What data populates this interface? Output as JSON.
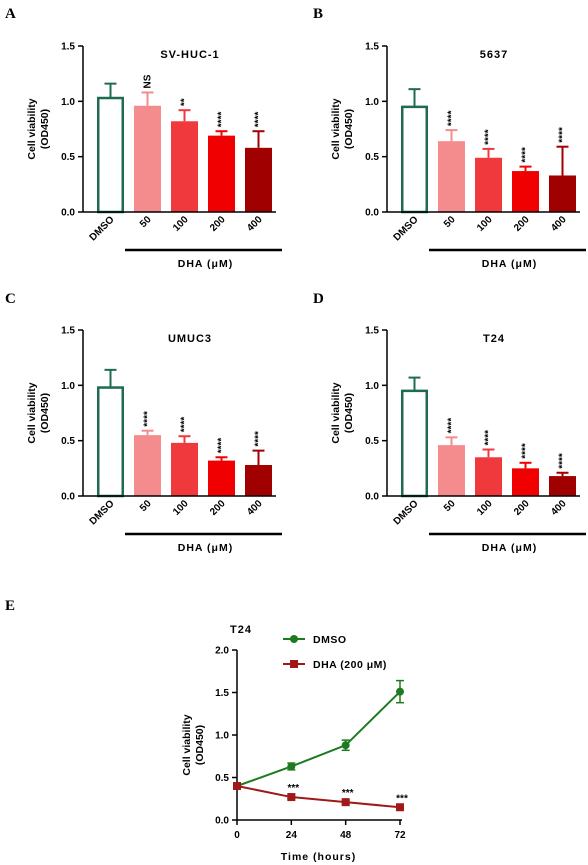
{
  "panel_letters": [
    "A",
    "B",
    "C",
    "D",
    "E"
  ],
  "chart_data": [
    {
      "type": "bar",
      "panel": "A",
      "title": "SV-HUC-1",
      "ylabel_line1": "Cell viability",
      "ylabel_line2": "(OD450)",
      "categories": [
        "DMSO",
        "50",
        "100",
        "200",
        "400"
      ],
      "values": [
        1.03,
        0.96,
        0.82,
        0.69,
        0.58
      ],
      "errors": [
        0.13,
        0.12,
        0.1,
        0.04,
        0.15
      ],
      "significance": [
        "",
        "NS",
        "**",
        "****",
        "****"
      ],
      "group_label": "DHA (μM)",
      "ylim": [
        0,
        1.5
      ],
      "yticks": [
        "0.0",
        "0.5",
        "1.0",
        "1.5"
      ],
      "colors": [
        "#ffffff",
        "#f48b8d",
        "#f0393d",
        "#f00000",
        "#a10000"
      ],
      "edge_colors": [
        "#1e6b50",
        "#f48b8d",
        "#f0393d",
        "#f00000",
        "#a10000"
      ]
    },
    {
      "type": "bar",
      "panel": "B",
      "title": "5637",
      "ylabel_line1": "Cell viability",
      "ylabel_line2": "(OD450)",
      "categories": [
        "DMSO",
        "50",
        "100",
        "200",
        "400"
      ],
      "values": [
        0.95,
        0.64,
        0.49,
        0.37,
        0.33
      ],
      "errors": [
        0.16,
        0.1,
        0.08,
        0.04,
        0.26
      ],
      "significance": [
        "",
        "****",
        "****",
        "****",
        "****"
      ],
      "group_label": "DHA (μM)",
      "ylim": [
        0,
        1.5
      ],
      "yticks": [
        "0.0",
        "0.5",
        "1.0",
        "1.5"
      ],
      "colors": [
        "#ffffff",
        "#f48b8d",
        "#f0393d",
        "#f00000",
        "#a10000"
      ],
      "edge_colors": [
        "#1e6b50",
        "#f48b8d",
        "#f0393d",
        "#f00000",
        "#a10000"
      ]
    },
    {
      "type": "bar",
      "panel": "C",
      "title": "UMUC3",
      "ylabel_line1": "Cell viability",
      "ylabel_line2": "(OD450)",
      "categories": [
        "DMSO",
        "50",
        "100",
        "200",
        "400"
      ],
      "values": [
        0.98,
        0.55,
        0.48,
        0.32,
        0.28
      ],
      "errors": [
        0.16,
        0.04,
        0.06,
        0.03,
        0.13
      ],
      "significance": [
        "",
        "****",
        "****",
        "****",
        "****"
      ],
      "group_label": "DHA (μM)",
      "ylim": [
        0,
        1.5
      ],
      "yticks": [
        "0.0",
        "0.5",
        "1.0",
        "1.5"
      ],
      "colors": [
        "#ffffff",
        "#f48b8d",
        "#f0393d",
        "#f00000",
        "#a10000"
      ],
      "edge_colors": [
        "#1e6b50",
        "#f48b8d",
        "#f0393d",
        "#f00000",
        "#a10000"
      ]
    },
    {
      "type": "bar",
      "panel": "D",
      "title": "T24",
      "ylabel_line1": "Cell viability",
      "ylabel_line2": "(OD450)",
      "categories": [
        "DMSO",
        "50",
        "100",
        "200",
        "400"
      ],
      "values": [
        0.95,
        0.46,
        0.35,
        0.25,
        0.18
      ],
      "errors": [
        0.12,
        0.07,
        0.07,
        0.05,
        0.03
      ],
      "significance": [
        "",
        "****",
        "****",
        "****",
        "****"
      ],
      "group_label": "DHA (μM)",
      "ylim": [
        0,
        1.5
      ],
      "yticks": [
        "0.0",
        "0.5",
        "1.0",
        "1.5"
      ],
      "colors": [
        "#ffffff",
        "#f48b8d",
        "#f0393d",
        "#f00000",
        "#a10000"
      ],
      "edge_colors": [
        "#1e6b50",
        "#f48b8d",
        "#f0393d",
        "#f00000",
        "#a10000"
      ]
    },
    {
      "type": "line",
      "panel": "E",
      "title": "T24",
      "xlabel": "Time (hours)",
      "ylabel_line1": "Cell viability",
      "ylabel_line2": "(OD450)",
      "x": [
        0,
        24,
        48,
        72
      ],
      "xticks": [
        "0",
        "24",
        "48",
        "72"
      ],
      "ylim": [
        0,
        2.0
      ],
      "yticks": [
        "0.0",
        "0.5",
        "1.0",
        "1.5",
        "2.0"
      ],
      "xlim": [
        0,
        72
      ],
      "significance": [
        "",
        "***",
        "***",
        "***"
      ],
      "series": [
        {
          "name": "DMSO",
          "values": [
            0.4,
            0.63,
            0.88,
            1.51
          ],
          "errors": [
            0.0,
            0.04,
            0.06,
            0.13
          ],
          "color": "#1e7a1e",
          "marker": "circle"
        },
        {
          "name": "DHA (200 μM)",
          "values": [
            0.4,
            0.27,
            0.21,
            0.15
          ],
          "errors": [
            0.0,
            0.02,
            0.02,
            0.02
          ],
          "color": "#a01818",
          "marker": "square"
        }
      ],
      "legend_position": "top-right"
    }
  ]
}
